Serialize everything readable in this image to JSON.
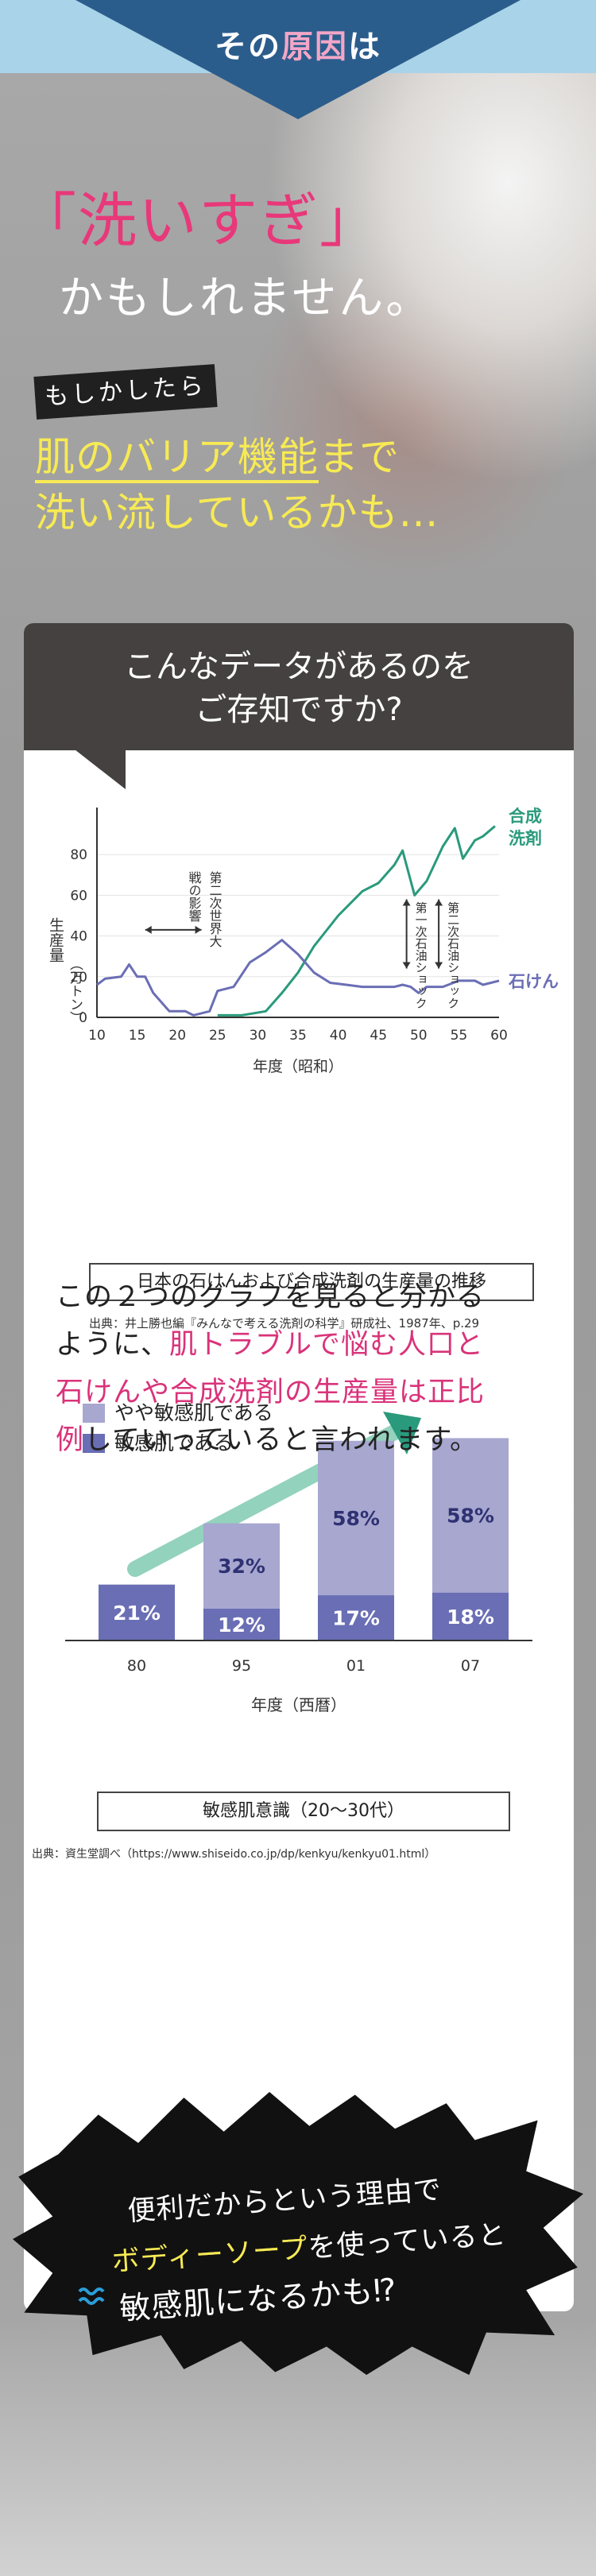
{
  "header": {
    "title_prefix": "その",
    "title_accent": "原因",
    "title_suffix": "は"
  },
  "hero": {
    "line1": "「洗いすぎ」",
    "line2": "かもしれません。",
    "tag": "もしかしたら",
    "yellow1_underlined": "肌のバリア機能",
    "yellow1_rest": "まで",
    "yellow2": "洗い流しているかも…"
  },
  "card": {
    "title_line1": "こんなデータがあるのを",
    "title_line2": "ご存知ですか?"
  },
  "chart1": {
    "ylabel": "生産量",
    "ylabel_unit": "（万トン）",
    "xlabel": "年度（昭和）",
    "caption": "日本の石けんおよび合成洗剤の生産量の推移",
    "source": "出典：井上勝也編『みんなで考える洗剤の科学』研成社、1987年、p.29",
    "annotation_war": "第二次世界大戦の影響",
    "annotation_oil1": "第一次石油ショック",
    "annotation_oil2": "第二次石油ショック"
  },
  "chart2": {
    "xlabel": "年度（西暦）",
    "caption": "敏感肌意識（20〜30代）",
    "source": "出典：資生堂調べ（https://www.shiseido.co.jp/dp/kenkyu/kenkyu01.html）",
    "legend_light": "やや敏感肌である",
    "legend_dark": "敏感肌である"
  },
  "conclusion": {
    "t1": "この２つのグラフを見ると分かるように、",
    "t2_pink": "肌トラブルで悩む人口と石けんや合成洗剤の生産量は正比例",
    "t3": "していっていると言われます。"
  },
  "burst": {
    "line1": "便利だからという理由で",
    "line2_yellow": "ボディーソープ",
    "line2_rest": "を使っていると",
    "line3": "敏感肌になるかも⁉"
  },
  "colors": {
    "header_blue": "#2b5d8c",
    "pink": "#e8387a",
    "yellow": "#f7ea54",
    "synthetic_green": "#2a9a7c",
    "soap_purple": "#6a6eb4",
    "light_purple": "#a7a7d0"
  },
  "chart_data": [
    {
      "type": "line",
      "ylim": [
        0,
        100
      ],
      "xlim": [
        10,
        60
      ],
      "x_ticks": [
        10,
        15,
        20,
        25,
        30,
        35,
        40,
        45,
        50,
        55,
        60
      ],
      "y_ticks": [
        0,
        20,
        40,
        60,
        80
      ],
      "series": [
        {
          "name": "合成洗剤",
          "color": "#2a9a7c",
          "points": [
            [
              25,
              1
            ],
            [
              28,
              1
            ],
            [
              31,
              3
            ],
            [
              33,
              12
            ],
            [
              35,
              22
            ],
            [
              37,
              35
            ],
            [
              40,
              50
            ],
            [
              43,
              62
            ],
            [
              45,
              66
            ],
            [
              47,
              75
            ],
            [
              48,
              82
            ],
            [
              49.5,
              60
            ],
            [
              51,
              67
            ],
            [
              53,
              84
            ],
            [
              54.5,
              93
            ],
            [
              55.5,
              78
            ],
            [
              57,
              87
            ],
            [
              58,
              89
            ],
            [
              59.5,
              94
            ]
          ]
        },
        {
          "name": "石けん",
          "color": "#6a6eb4",
          "points": [
            [
              10,
              16
            ],
            [
              11,
              19
            ],
            [
              13,
              20
            ],
            [
              14,
              26
            ],
            [
              15,
              20
            ],
            [
              16,
              20
            ],
            [
              17,
              12
            ],
            [
              19,
              3
            ],
            [
              21,
              3
            ],
            [
              22,
              1
            ],
            [
              24,
              3
            ],
            [
              25,
              13
            ],
            [
              27,
              15
            ],
            [
              29,
              27
            ],
            [
              31,
              32
            ],
            [
              33,
              38
            ],
            [
              35,
              31
            ],
            [
              37,
              22
            ],
            [
              39,
              17
            ],
            [
              41,
              16
            ],
            [
              43,
              15
            ],
            [
              45,
              15
            ],
            [
              47,
              15
            ],
            [
              48,
              16
            ],
            [
              49,
              15
            ],
            [
              50,
              12
            ],
            [
              51,
              15
            ],
            [
              53,
              15
            ],
            [
              55,
              18
            ],
            [
              57,
              18
            ],
            [
              58,
              16
            ],
            [
              60,
              18
            ]
          ]
        }
      ]
    },
    {
      "type": "bar",
      "stacked": true,
      "categories": [
        "80",
        "95",
        "01",
        "07"
      ],
      "series": [
        {
          "name": "敏感肌である",
          "color": "#6a6eb4",
          "values": [
            21,
            12,
            17,
            18
          ]
        },
        {
          "name": "やや敏感肌である",
          "color": "#a7a7d0",
          "values": [
            0,
            32,
            58,
            58
          ]
        }
      ],
      "value_labels": {
        "dark": [
          "21%",
          "12%",
          "17%",
          "18%"
        ],
        "light": [
          "",
          "32%",
          "58%",
          "58%"
        ]
      }
    }
  ]
}
